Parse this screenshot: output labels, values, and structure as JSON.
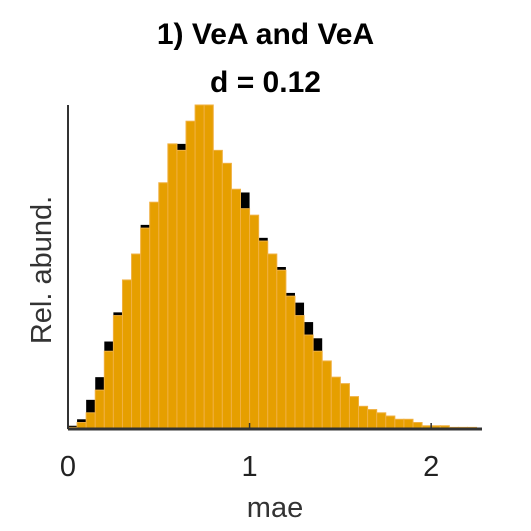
{
  "chart_data": {
    "type": "bar",
    "title": "1) VeA and VeA",
    "subtitle": "d = 0.12",
    "xlabel": "mae",
    "ylabel": "Rel. abund.",
    "xlim": [
      0,
      2.28
    ],
    "ylim": [
      0,
      1.0
    ],
    "xticks": [
      0,
      1,
      2
    ],
    "bin_width": 0.05,
    "legend": "none",
    "grid": false,
    "series": [
      {
        "color": "#000000",
        "bins": [
          [
            0.0,
            0.01
          ],
          [
            0.05,
            0.03
          ],
          [
            0.1,
            0.09
          ],
          [
            0.15,
            0.16
          ],
          [
            0.2,
            0.27
          ],
          [
            0.25,
            0.36
          ],
          [
            0.3,
            0.44
          ],
          [
            0.35,
            0.52
          ],
          [
            0.4,
            0.63
          ],
          [
            0.45,
            0.69
          ],
          [
            0.5,
            0.76
          ],
          [
            0.55,
            0.85
          ],
          [
            0.6,
            0.88
          ],
          [
            0.65,
            0.94
          ],
          [
            0.7,
            0.97
          ],
          [
            0.75,
            0.91
          ],
          [
            0.8,
            0.85
          ],
          [
            0.85,
            0.8
          ],
          [
            0.9,
            0.74
          ],
          [
            0.95,
            0.73
          ],
          [
            1.0,
            0.66
          ],
          [
            1.05,
            0.59
          ],
          [
            1.1,
            0.52
          ],
          [
            1.15,
            0.5
          ],
          [
            1.2,
            0.42
          ],
          [
            1.25,
            0.39
          ],
          [
            1.3,
            0.33
          ],
          [
            1.35,
            0.28
          ],
          [
            1.4,
            0.19
          ],
          [
            1.45,
            0.12
          ],
          [
            1.5,
            0.09
          ],
          [
            1.55,
            0.06
          ],
          [
            1.6,
            0.04
          ],
          [
            1.65,
            0.03
          ],
          [
            1.7,
            0.02
          ],
          [
            1.75,
            0.015
          ],
          [
            1.8,
            0.01
          ],
          [
            1.85,
            0.008
          ],
          [
            1.9,
            0.006
          ],
          [
            1.95,
            0.004
          ],
          [
            2.0,
            0.01
          ],
          [
            2.05,
            0.003
          ],
          [
            2.1,
            0.002
          ],
          [
            2.15,
            0.002
          ],
          [
            2.2,
            0.001
          ]
        ]
      },
      {
        "color": "#E69F00",
        "bins": [
          [
            0.0,
            0.005
          ],
          [
            0.05,
            0.02
          ],
          [
            0.1,
            0.05
          ],
          [
            0.15,
            0.12
          ],
          [
            0.2,
            0.24
          ],
          [
            0.25,
            0.35
          ],
          [
            0.3,
            0.46
          ],
          [
            0.35,
            0.54
          ],
          [
            0.4,
            0.62
          ],
          [
            0.45,
            0.7
          ],
          [
            0.5,
            0.76
          ],
          [
            0.55,
            0.88
          ],
          [
            0.6,
            0.86
          ],
          [
            0.65,
            0.95
          ],
          [
            0.7,
            1.0
          ],
          [
            0.75,
            1.0
          ],
          [
            0.8,
            0.86
          ],
          [
            0.85,
            0.82
          ],
          [
            0.9,
            0.74
          ],
          [
            0.95,
            0.68
          ],
          [
            1.0,
            0.66
          ],
          [
            1.05,
            0.58
          ],
          [
            1.1,
            0.54
          ],
          [
            1.15,
            0.49
          ],
          [
            1.2,
            0.41
          ],
          [
            1.25,
            0.35
          ],
          [
            1.3,
            0.29
          ],
          [
            1.35,
            0.24
          ],
          [
            1.4,
            0.21
          ],
          [
            1.45,
            0.16
          ],
          [
            1.5,
            0.14
          ],
          [
            1.55,
            0.1
          ],
          [
            1.6,
            0.07
          ],
          [
            1.65,
            0.06
          ],
          [
            1.7,
            0.05
          ],
          [
            1.75,
            0.04
          ],
          [
            1.8,
            0.03
          ],
          [
            1.85,
            0.03
          ],
          [
            1.9,
            0.02
          ],
          [
            1.95,
            0.01
          ],
          [
            2.0,
            0.01
          ],
          [
            2.05,
            0.01
          ],
          [
            2.1,
            0.005
          ],
          [
            2.15,
            0.005
          ],
          [
            2.2,
            0.005
          ]
        ]
      }
    ]
  }
}
